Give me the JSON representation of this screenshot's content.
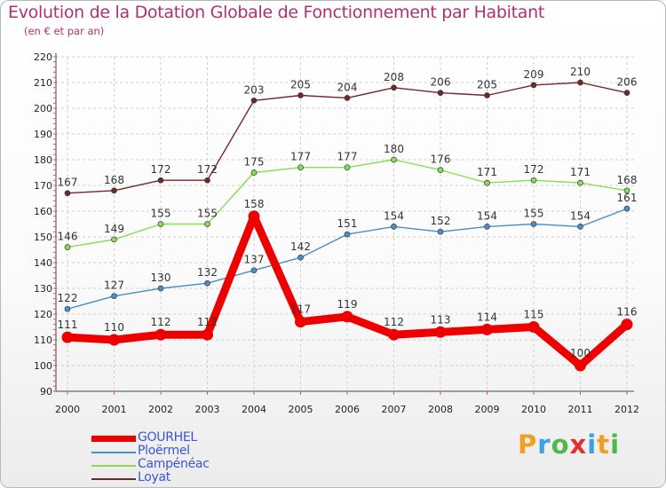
{
  "chart_data": {
    "type": "line",
    "title": "Evolution de la Dotation Globale de Fonctionnement par Habitant",
    "subtitle": "(en € et par an)",
    "xlabel": "",
    "ylabel": "",
    "ylim": [
      90,
      220
    ],
    "yticks": [
      90,
      100,
      110,
      120,
      130,
      140,
      150,
      160,
      170,
      180,
      190,
      200,
      210,
      220
    ],
    "categories": [
      "2000",
      "2001",
      "2002",
      "2003",
      "2004",
      "2005",
      "2006",
      "2007",
      "2008",
      "2009",
      "2010",
      "2011",
      "2012"
    ],
    "grid": true,
    "legend_position": "bottom-left",
    "series": [
      {
        "name": "GOURHEL",
        "color": "#ee0000",
        "values": [
          111,
          110,
          112,
          112,
          158,
          117,
          119,
          112,
          113,
          114,
          115,
          100,
          116
        ]
      },
      {
        "name": "Ploërmel",
        "color": "#4a90c8",
        "values": [
          122,
          127,
          130,
          132,
          137,
          142,
          151,
          154,
          152,
          154,
          155,
          154,
          161
        ]
      },
      {
        "name": "Campénéac",
        "color": "#88dd55",
        "values": [
          146,
          149,
          155,
          155,
          175,
          177,
          177,
          180,
          176,
          171,
          172,
          171,
          168
        ]
      },
      {
        "name": "Loyat",
        "color": "#702828",
        "values": [
          167,
          168,
          172,
          172,
          203,
          205,
          204,
          208,
          206,
          205,
          209,
          210,
          206
        ]
      }
    ]
  },
  "branding": {
    "logo_letters": [
      "P",
      "r",
      "o",
      "x",
      "i",
      "t",
      "i"
    ],
    "logo_colors": [
      "#f0a020",
      "#3aa0e0",
      "#50b848",
      "#e23030",
      "#3aa0e0",
      "#f0a020",
      "#50b848"
    ]
  }
}
